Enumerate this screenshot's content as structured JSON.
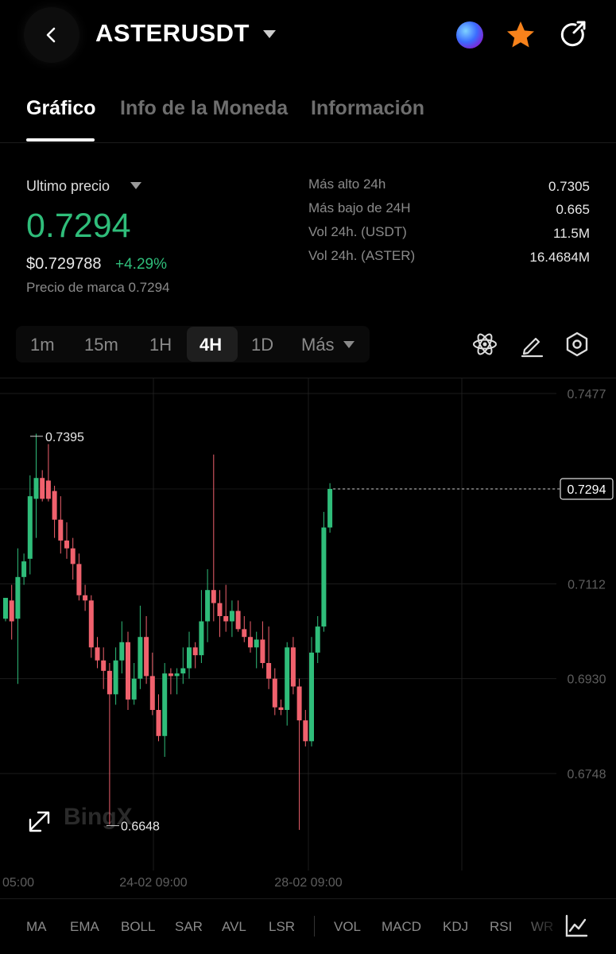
{
  "header": {
    "title": "ASTERUSDT",
    "icons": {
      "back": "back-arrow-icon",
      "dropdown": "caret-down-icon",
      "orb": "ai-orb-icon",
      "favorite": "star-icon",
      "share": "share-icon"
    }
  },
  "tabs": [
    {
      "label": "Gráfico",
      "active": true
    },
    {
      "label": "Info de la Moneda",
      "active": false
    },
    {
      "label": "Información",
      "active": false
    }
  ],
  "price": {
    "last_label": "Ultimo precio",
    "last_price": "0.7294",
    "fiat_price": "$0.729788",
    "change_pct": "+4.29%",
    "mark_price": "Precio de marca 0.7294"
  },
  "stats": [
    {
      "label": "Más alto 24h",
      "value": "0.7305"
    },
    {
      "label": "Más bajo de 24H",
      "value": "0.665"
    },
    {
      "label": "Vol 24h. (USDT)",
      "value": "11.5M"
    },
    {
      "label": "Vol 24h. (ASTER)",
      "value": "16.4684M"
    }
  ],
  "intervals": [
    {
      "label": "1m",
      "active": false
    },
    {
      "label": "15m",
      "active": false
    },
    {
      "label": "1H",
      "active": false
    },
    {
      "label": "4H",
      "active": true
    },
    {
      "label": "1D",
      "active": false
    },
    {
      "label": "Más",
      "active": false
    }
  ],
  "chart_tools": [
    "atom-icon",
    "pencil-icon",
    "settings-hex-icon"
  ],
  "colors": {
    "up": "#2fbd7a",
    "down": "#f0616d",
    "accent_star": "#f7821b"
  },
  "chart_data": {
    "type": "candlestick",
    "y_ticks": [
      "0.7477",
      "0.7112",
      "0.6930",
      "0.6748"
    ],
    "y_tick_values": [
      0.7477,
      0.7112,
      0.693,
      0.6748
    ],
    "x_ticks": [
      "05:00",
      "24-02 09:00",
      "28-02 09:00"
    ],
    "last_price_label": "0.7294",
    "last_price": 0.7294,
    "high_marker": {
      "label": "0.7395",
      "value": 0.7395
    },
    "low_marker": {
      "label": "0.6648",
      "value": 0.6648
    },
    "watermark": "BingX",
    "candles": [
      {
        "o": 0.7045,
        "h": 0.708,
        "l": 0.704,
        "c": 0.7085
      },
      {
        "o": 0.708,
        "h": 0.711,
        "l": 0.7005,
        "c": 0.704
      },
      {
        "o": 0.7045,
        "h": 0.718,
        "l": 0.692,
        "c": 0.7125
      },
      {
        "o": 0.7125,
        "h": 0.717,
        "l": 0.711,
        "c": 0.7155
      },
      {
        "o": 0.716,
        "h": 0.732,
        "l": 0.713,
        "c": 0.728
      },
      {
        "o": 0.7275,
        "h": 0.74,
        "l": 0.72,
        "c": 0.7315
      },
      {
        "o": 0.7315,
        "h": 0.733,
        "l": 0.727,
        "c": 0.7275
      },
      {
        "o": 0.731,
        "h": 0.738,
        "l": 0.727,
        "c": 0.7275
      },
      {
        "o": 0.729,
        "h": 0.73,
        "l": 0.72,
        "c": 0.7235
      },
      {
        "o": 0.7235,
        "h": 0.728,
        "l": 0.717,
        "c": 0.7195
      },
      {
        "o": 0.7195,
        "h": 0.723,
        "l": 0.716,
        "c": 0.718
      },
      {
        "o": 0.718,
        "h": 0.72,
        "l": 0.712,
        "c": 0.715
      },
      {
        "o": 0.715,
        "h": 0.717,
        "l": 0.708,
        "c": 0.709
      },
      {
        "o": 0.709,
        "h": 0.711,
        "l": 0.706,
        "c": 0.708
      },
      {
        "o": 0.708,
        "h": 0.709,
        "l": 0.697,
        "c": 0.699
      },
      {
        "o": 0.699,
        "h": 0.701,
        "l": 0.695,
        "c": 0.6965
      },
      {
        "o": 0.6965,
        "h": 0.699,
        "l": 0.691,
        "c": 0.6945
      },
      {
        "o": 0.6945,
        "h": 0.696,
        "l": 0.665,
        "c": 0.69
      },
      {
        "o": 0.69,
        "h": 0.699,
        "l": 0.688,
        "c": 0.6965
      },
      {
        "o": 0.6965,
        "h": 0.704,
        "l": 0.694,
        "c": 0.7
      },
      {
        "o": 0.7,
        "h": 0.702,
        "l": 0.687,
        "c": 0.689
      },
      {
        "o": 0.689,
        "h": 0.696,
        "l": 0.688,
        "c": 0.693
      },
      {
        "o": 0.693,
        "h": 0.707,
        "l": 0.691,
        "c": 0.701
      },
      {
        "o": 0.701,
        "h": 0.705,
        "l": 0.692,
        "c": 0.6935
      },
      {
        "o": 0.6935,
        "h": 0.698,
        "l": 0.686,
        "c": 0.687
      },
      {
        "o": 0.687,
        "h": 0.69,
        "l": 0.681,
        "c": 0.682
      },
      {
        "o": 0.682,
        "h": 0.696,
        "l": 0.678,
        "c": 0.694
      },
      {
        "o": 0.694,
        "h": 0.695,
        "l": 0.69,
        "c": 0.6935
      },
      {
        "o": 0.6935,
        "h": 0.695,
        "l": 0.69,
        "c": 0.694
      },
      {
        "o": 0.694,
        "h": 0.699,
        "l": 0.692,
        "c": 0.695
      },
      {
        "o": 0.695,
        "h": 0.702,
        "l": 0.693,
        "c": 0.699
      },
      {
        "o": 0.699,
        "h": 0.7,
        "l": 0.695,
        "c": 0.6975
      },
      {
        "o": 0.6975,
        "h": 0.71,
        "l": 0.696,
        "c": 0.704
      },
      {
        "o": 0.704,
        "h": 0.714,
        "l": 0.7,
        "c": 0.71
      },
      {
        "o": 0.71,
        "h": 0.736,
        "l": 0.704,
        "c": 0.7075
      },
      {
        "o": 0.7075,
        "h": 0.71,
        "l": 0.701,
        "c": 0.705
      },
      {
        "o": 0.705,
        "h": 0.711,
        "l": 0.702,
        "c": 0.704
      },
      {
        "o": 0.704,
        "h": 0.708,
        "l": 0.701,
        "c": 0.706
      },
      {
        "o": 0.706,
        "h": 0.708,
        "l": 0.702,
        "c": 0.7025
      },
      {
        "o": 0.7025,
        "h": 0.705,
        "l": 0.7,
        "c": 0.701
      },
      {
        "o": 0.701,
        "h": 0.704,
        "l": 0.698,
        "c": 0.699
      },
      {
        "o": 0.699,
        "h": 0.702,
        "l": 0.695,
        "c": 0.7005
      },
      {
        "o": 0.7005,
        "h": 0.704,
        "l": 0.695,
        "c": 0.696
      },
      {
        "o": 0.696,
        "h": 0.703,
        "l": 0.691,
        "c": 0.693
      },
      {
        "o": 0.693,
        "h": 0.695,
        "l": 0.686,
        "c": 0.6875
      },
      {
        "o": 0.6875,
        "h": 0.689,
        "l": 0.686,
        "c": 0.687
      },
      {
        "o": 0.687,
        "h": 0.7,
        "l": 0.684,
        "c": 0.699
      },
      {
        "o": 0.699,
        "h": 0.701,
        "l": 0.69,
        "c": 0.6915
      },
      {
        "o": 0.6915,
        "h": 0.693,
        "l": 0.664,
        "c": 0.685
      },
      {
        "o": 0.685,
        "h": 0.687,
        "l": 0.68,
        "c": 0.681
      },
      {
        "o": 0.681,
        "h": 0.701,
        "l": 0.68,
        "c": 0.698
      },
      {
        "o": 0.698,
        "h": 0.705,
        "l": 0.696,
        "c": 0.703
      },
      {
        "o": 0.703,
        "h": 0.725,
        "l": 0.702,
        "c": 0.722
      },
      {
        "o": 0.722,
        "h": 0.7305,
        "l": 0.721,
        "c": 0.7294
      }
    ]
  },
  "indicators": {
    "main": [
      "MA",
      "EMA",
      "BOLL",
      "SAR",
      "AVL",
      "LSR"
    ],
    "sub": [
      "VOL",
      "MACD",
      "KDJ",
      "RSI",
      "WR"
    ]
  }
}
